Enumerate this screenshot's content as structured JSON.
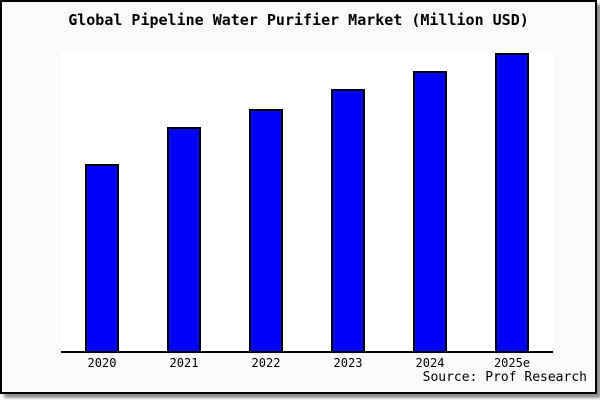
{
  "chart_data": {
    "type": "bar",
    "title": "Global Pipeline Water Purifier Market (Million USD)",
    "categories": [
      "2020",
      "2021",
      "2022",
      "2023",
      "2024",
      "2025e"
    ],
    "values": [
      62.8,
      75.2,
      81.5,
      87.9,
      94.0,
      100.0
    ],
    "value_note": "y-axis is unlabeled; values estimated from bar heights, indexed to 2025e = 100",
    "xlabel": "",
    "ylabel": "",
    "ylim": [
      0,
      100.5
    ],
    "grid": "off",
    "legend": "none",
    "source": "Source: Prof Research"
  },
  "colors": {
    "bar_fill": "#0000ff",
    "bar_edge": "#000000",
    "figure_background": "#fafafa",
    "plot_background": "#ffffff",
    "figure_border": "#000000",
    "text": "#000000"
  }
}
